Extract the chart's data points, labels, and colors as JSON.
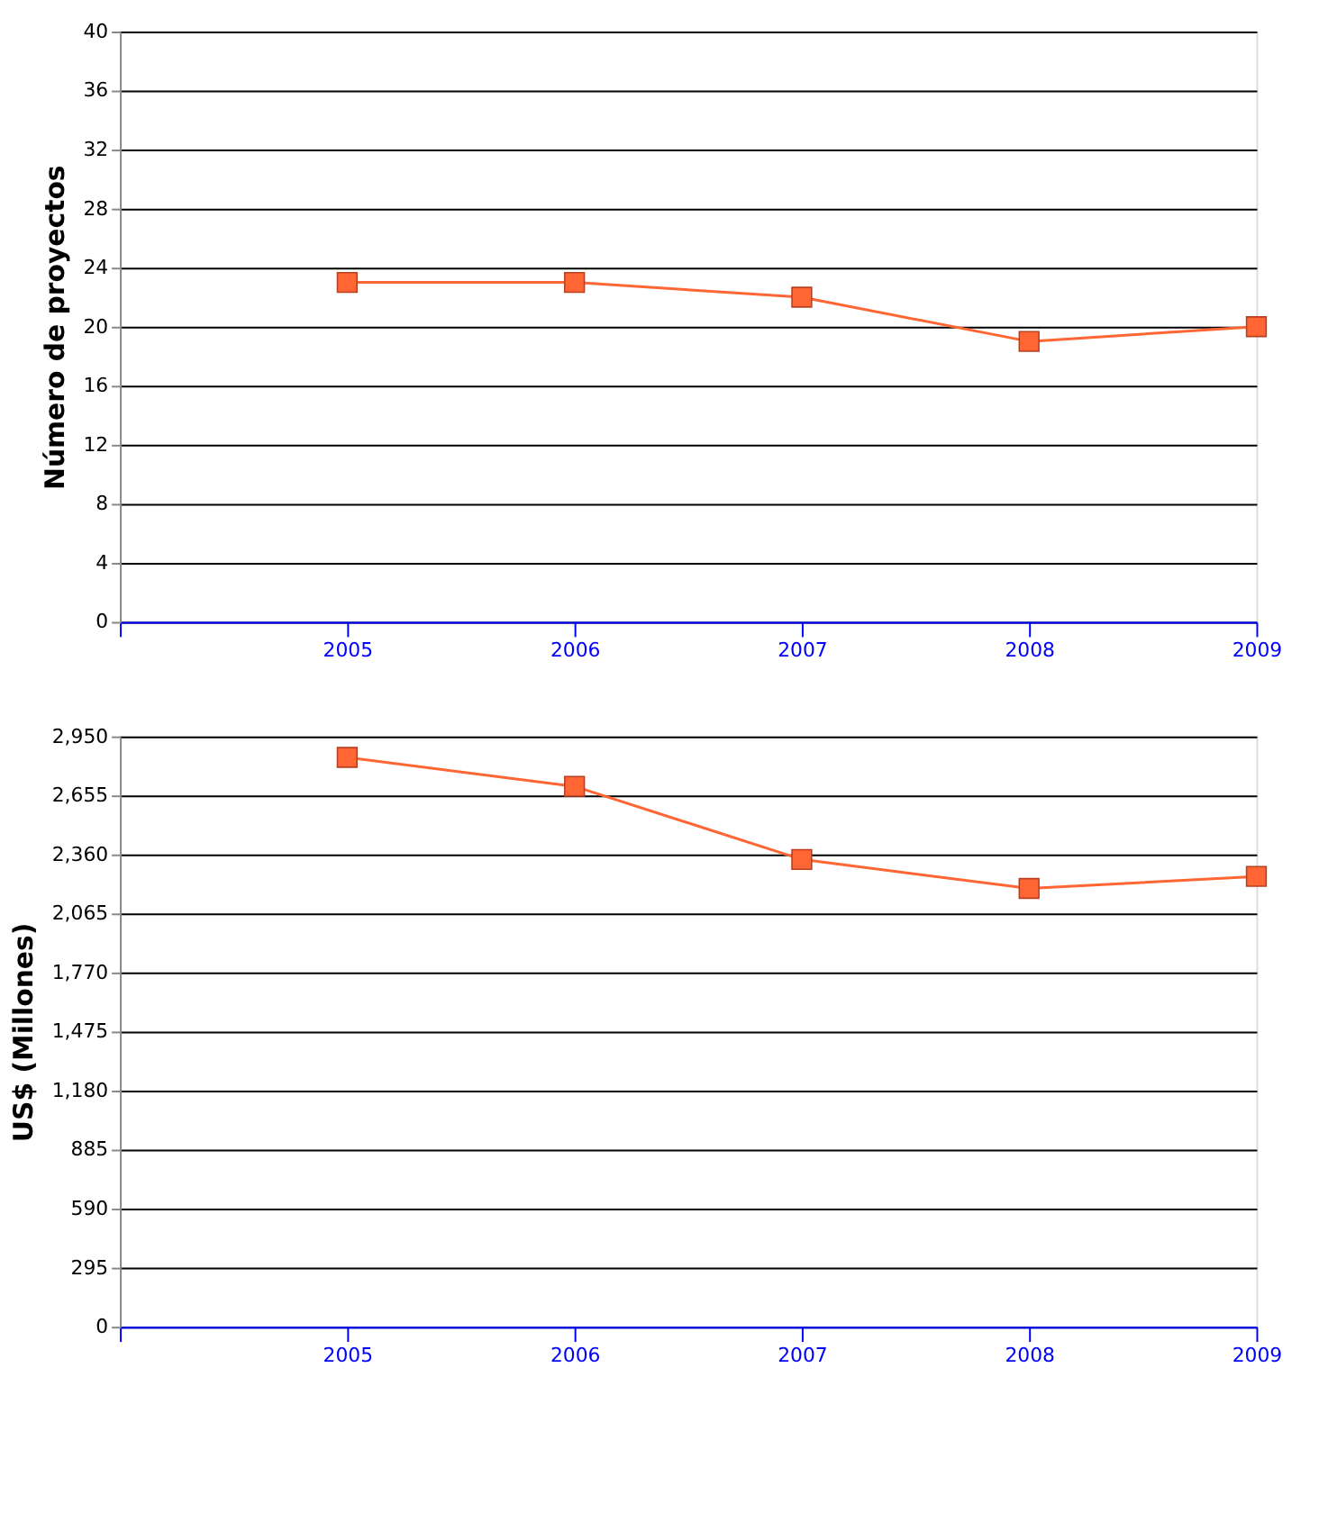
{
  "chart_data": [
    {
      "type": "line",
      "ylabel": "Número de proyectos",
      "x": [
        2005,
        2006,
        2007,
        2008,
        2009
      ],
      "series": [
        {
          "color": "#ff6633",
          "values": [
            23,
            23,
            22,
            19,
            20
          ]
        }
      ],
      "xlim": [
        2004,
        2009
      ],
      "xticks": [
        {
          "value": 2004,
          "label": null
        },
        2005,
        2006,
        2007,
        2008,
        2009
      ],
      "ylim": [
        0,
        40
      ],
      "yticks": [
        0,
        4,
        8,
        12,
        16,
        20,
        24,
        28,
        32,
        36,
        40
      ],
      "grid": "y",
      "marker": "square",
      "line_style": "solid",
      "legend": false
    },
    {
      "type": "line",
      "ylabel": "US$ (Millones)",
      "x": [
        2005,
        2006,
        2007,
        2008,
        2009
      ],
      "series": [
        {
          "color": "#ff6633",
          "values": [
            2845,
            2700,
            2335,
            2190,
            2250
          ]
        }
      ],
      "xlim": [
        2004,
        2009
      ],
      "xticks": [
        {
          "value": 2004,
          "label": null
        },
        2005,
        2006,
        2007,
        2008,
        2009
      ],
      "ylim": [
        0,
        2950
      ],
      "yticks": [
        {
          "value": 0,
          "label": "0"
        },
        {
          "value": 295,
          "label": "295"
        },
        {
          "value": 590,
          "label": "590"
        },
        {
          "value": 885,
          "label": "885"
        },
        {
          "value": 1180,
          "label": "1,180"
        },
        {
          "value": 1475,
          "label": "1,475"
        },
        {
          "value": 1770,
          "label": "1,770"
        },
        {
          "value": 2065,
          "label": "2,065"
        },
        {
          "value": 2360,
          "label": "2,360"
        },
        {
          "value": 2655,
          "label": "2,655"
        },
        {
          "value": 2950,
          "label": "2,950"
        }
      ],
      "grid": "y",
      "marker": "square",
      "line_style": "solid",
      "legend": false
    }
  ]
}
